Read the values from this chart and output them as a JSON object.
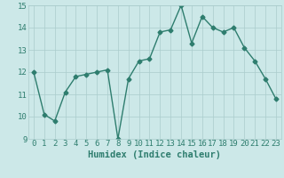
{
  "x": [
    0,
    1,
    2,
    3,
    4,
    5,
    6,
    7,
    8,
    9,
    10,
    11,
    12,
    13,
    14,
    15,
    16,
    17,
    18,
    19,
    20,
    21,
    22,
    23
  ],
  "y": [
    12.0,
    10.1,
    9.8,
    11.1,
    11.8,
    11.9,
    12.0,
    12.1,
    9.0,
    11.7,
    12.5,
    12.6,
    13.8,
    13.9,
    15.0,
    13.3,
    14.5,
    14.0,
    13.8,
    14.0,
    13.1,
    12.5,
    11.7,
    10.8
  ],
  "line_color": "#2e7d6e",
  "marker": "D",
  "marker_size": 2.5,
  "bg_color": "#cce8e8",
  "grid_color": "#aacccc",
  "ylim": [
    9,
    15
  ],
  "xlim": [
    -0.5,
    23.5
  ],
  "yticks": [
    9,
    10,
    11,
    12,
    13,
    14,
    15
  ],
  "xticks": [
    0,
    1,
    2,
    3,
    4,
    5,
    6,
    7,
    8,
    9,
    10,
    11,
    12,
    13,
    14,
    15,
    16,
    17,
    18,
    19,
    20,
    21,
    22,
    23
  ],
  "xlabel": "Humidex (Indice chaleur)",
  "xlabel_fontsize": 7.5,
  "tick_fontsize": 6.5,
  "line_width": 1.0
}
